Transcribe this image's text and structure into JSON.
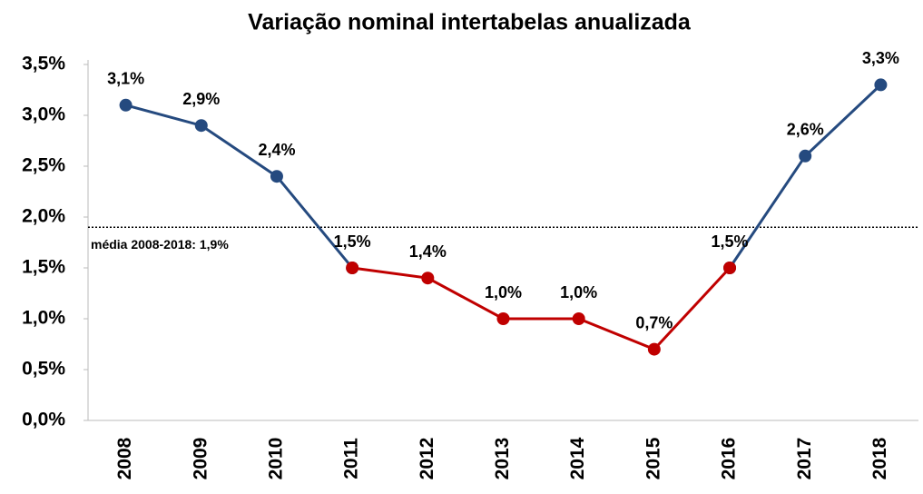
{
  "chart_data": {
    "type": "line",
    "title": "Variação nominal intertabelas anualizada",
    "categories": [
      "2008",
      "2009",
      "2010",
      "2011",
      "2012",
      "2013",
      "2014",
      "2015",
      "2016",
      "2017",
      "2018"
    ],
    "series": [
      {
        "color": "#254a7f",
        "values": [
          3.1,
          2.9,
          2.4,
          1.5,
          null,
          null,
          null,
          null,
          1.5,
          2.6,
          3.3
        ],
        "value_labels": [
          "3,1%",
          "2,9%",
          "2,4%",
          null,
          null,
          null,
          null,
          null,
          null,
          "2,6%",
          "3,3%"
        ]
      },
      {
        "color": "#c00000",
        "values": [
          null,
          null,
          null,
          1.5,
          1.4,
          1.0,
          1.0,
          0.7,
          1.5,
          null,
          null
        ],
        "value_labels": [
          null,
          null,
          null,
          "1,5%",
          "1,4%",
          "1,0%",
          "1,0%",
          "0,7%",
          "1,5%",
          null,
          null
        ]
      }
    ],
    "ylim": [
      0,
      3.5
    ],
    "yticks": [
      {
        "value": 0,
        "label": "0,0%"
      },
      {
        "value": 0.5,
        "label": "0,5%"
      },
      {
        "value": 1,
        "label": "1,0%"
      },
      {
        "value": 1.5,
        "label": "1,5%"
      },
      {
        "value": 2,
        "label": "2,0%"
      },
      {
        "value": 2.5,
        "label": "2,5%"
      },
      {
        "value": 3,
        "label": "3,0%"
      },
      {
        "value": 3.5,
        "label": "3,5%"
      }
    ],
    "mean": 1.9,
    "mean_label": "média 2008-2018: 1,9%",
    "grid": false
  }
}
